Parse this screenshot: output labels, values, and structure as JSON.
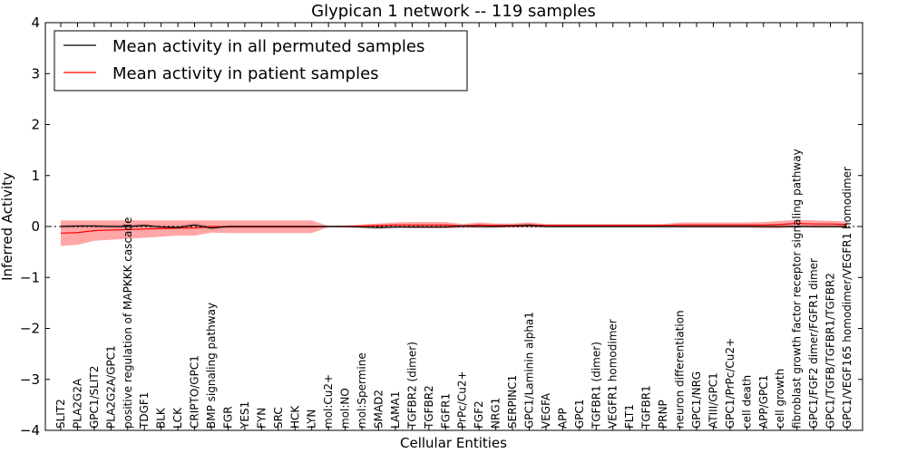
{
  "chart_data": {
    "type": "line",
    "title": "Glypican 1 network -- 119 samples",
    "xlabel": "Cellular Entities",
    "ylabel": "Inferred Activity",
    "ylim": [
      -4,
      4
    ],
    "yticks": [
      -4,
      -3,
      -2,
      -1,
      0,
      1,
      2,
      3,
      4
    ],
    "ytick_labels": [
      "−4",
      "−3",
      "−2",
      "−1",
      "0",
      "1",
      "2",
      "3",
      "4"
    ],
    "categories": [
      "SLIT2",
      "PLA2G2A",
      "GPC1/SLIT2",
      "PLA2G2A/GPC1",
      "positive regulation of MAPKKK cascade",
      "TDGF1",
      "BLK",
      "LCK",
      "CRIPTO/GPC1",
      "BMP signaling pathway",
      "FGR",
      "YES1",
      "FYN",
      "SRC",
      "HCK",
      "LYN",
      "mol:Cu2+",
      "mol:NO",
      "mol:Spermine",
      "SMAD2",
      "LAMA1",
      "TGFBR2 (dimer)",
      "TGFBR2",
      "FGFR1",
      "PrPc/Cu2+",
      "FGF2",
      "NRG1",
      "SERPINC1",
      "GPC1/Laminin alpha1",
      "VEGFA",
      "APP",
      "GPC1",
      "TGFBR1 (dimer)",
      "VEGFR1 homodimer",
      "FLT1",
      "TGFBR1",
      "PRNP",
      "neuron differentiation",
      "GPC1/NRG",
      "ATIII/GPC1",
      "GPC1/PrPc/Cu2+",
      "cell death",
      "APP/GPC1",
      "cell growth",
      "fibroblast growth factor receptor signaling pathway",
      "GPC1/FGF2 dimer/FGFR1 dimer",
      "GPC1/TGFB/TGFBR1/TGFBR2",
      "GPC1/VEGF165 homodimer/VEGFR1 homodimer"
    ],
    "series": [
      {
        "name": "Mean activity in all permuted samples",
        "color": "#000000",
        "values": [
          0.0,
          0.01,
          0.01,
          0.0,
          0.0,
          0.02,
          -0.01,
          -0.02,
          0.03,
          -0.03,
          0.0,
          0.0,
          0.0,
          0.0,
          0.0,
          0.0,
          0.0,
          0.0,
          -0.01,
          -0.02,
          -0.01,
          -0.01,
          -0.01,
          -0.01,
          0.01,
          0.0,
          0.0,
          0.01,
          0.02,
          0.0,
          0.0,
          0.0,
          0.0,
          0.0,
          0.0,
          0.0,
          0.0,
          0.0,
          0.0,
          0.0,
          0.0,
          0.0,
          0.0,
          0.0,
          0.0,
          0.0,
          0.0,
          0.0
        ],
        "band_upper": [
          0.04,
          0.04,
          0.04,
          0.04,
          0.04,
          0.06,
          0.03,
          0.02,
          0.08,
          0.01,
          0.02,
          0.02,
          0.02,
          0.02,
          0.02,
          0.02,
          0.02,
          0.02,
          0.02,
          0.01,
          0.02,
          0.02,
          0.02,
          0.02,
          0.04,
          0.03,
          0.03,
          0.04,
          0.06,
          0.03,
          0.03,
          0.03,
          0.03,
          0.03,
          0.03,
          0.03,
          0.03,
          0.03,
          0.03,
          0.03,
          0.03,
          0.03,
          0.03,
          0.03,
          0.03,
          0.03,
          0.03,
          0.03
        ],
        "band_lower": [
          -0.04,
          -0.03,
          -0.03,
          -0.04,
          -0.04,
          -0.02,
          -0.05,
          -0.06,
          -0.02,
          -0.07,
          -0.02,
          -0.02,
          -0.02,
          -0.02,
          -0.02,
          -0.02,
          -0.02,
          -0.02,
          -0.04,
          -0.06,
          -0.04,
          -0.04,
          -0.04,
          -0.04,
          -0.02,
          -0.03,
          -0.03,
          -0.02,
          -0.02,
          -0.03,
          -0.03,
          -0.03,
          -0.03,
          -0.03,
          -0.03,
          -0.03,
          -0.03,
          -0.03,
          -0.03,
          -0.03,
          -0.03,
          -0.03,
          -0.03,
          -0.03,
          -0.03,
          -0.03,
          -0.03,
          -0.03
        ]
      },
      {
        "name": "Mean activity in patient samples",
        "color": "#ff0000",
        "values": [
          -0.13,
          -0.12,
          -0.08,
          -0.07,
          -0.06,
          -0.05,
          -0.04,
          -0.03,
          -0.03,
          0.0,
          -0.01,
          -0.01,
          -0.01,
          -0.01,
          -0.01,
          -0.01,
          0.0,
          0.0,
          0.01,
          0.02,
          0.03,
          0.03,
          0.03,
          0.03,
          0.01,
          0.03,
          0.02,
          0.02,
          0.03,
          0.02,
          0.02,
          0.02,
          0.02,
          0.02,
          0.02,
          0.02,
          0.02,
          0.03,
          0.03,
          0.03,
          0.03,
          0.03,
          0.03,
          0.04,
          0.06,
          0.05,
          0.05,
          0.04
        ],
        "band_upper": [
          0.12,
          0.12,
          0.12,
          0.12,
          0.12,
          0.12,
          0.12,
          0.12,
          0.12,
          0.12,
          0.12,
          0.12,
          0.12,
          0.12,
          0.12,
          0.12,
          0.01,
          0.02,
          0.04,
          0.06,
          0.08,
          0.09,
          0.09,
          0.09,
          0.05,
          0.08,
          0.06,
          0.06,
          0.08,
          0.05,
          0.05,
          0.05,
          0.05,
          0.05,
          0.05,
          0.05,
          0.05,
          0.08,
          0.08,
          0.08,
          0.08,
          0.08,
          0.09,
          0.11,
          0.13,
          0.12,
          0.11,
          0.1
        ],
        "band_lower": [
          -0.38,
          -0.36,
          -0.28,
          -0.26,
          -0.24,
          -0.22,
          -0.2,
          -0.18,
          -0.18,
          -0.12,
          -0.13,
          -0.13,
          -0.13,
          -0.13,
          -0.13,
          -0.13,
          -0.01,
          -0.02,
          -0.02,
          -0.02,
          -0.02,
          -0.03,
          -0.03,
          -0.03,
          -0.03,
          -0.02,
          -0.02,
          -0.02,
          -0.02,
          -0.01,
          -0.01,
          -0.01,
          -0.01,
          -0.01,
          -0.01,
          -0.01,
          -0.01,
          -0.02,
          -0.02,
          -0.02,
          -0.02,
          -0.02,
          -0.03,
          -0.03,
          -0.01,
          -0.02,
          -0.02,
          -0.02
        ]
      }
    ],
    "legend_position": "top-left",
    "grid": false
  }
}
